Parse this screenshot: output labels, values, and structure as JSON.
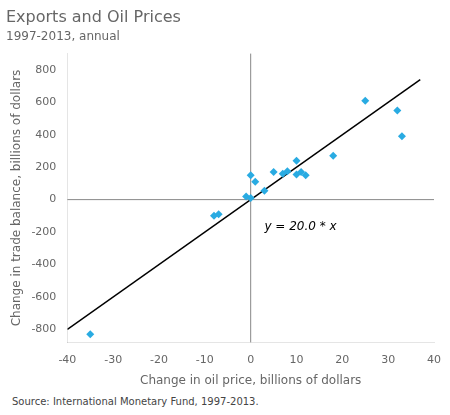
{
  "chart_data": {
    "type": "scatter",
    "title": "Exports and Oil Prices",
    "subtitle": "1997-2013, annual",
    "xlabel": "Change in oil price, billions of dollars",
    "ylabel": "Change in trade balance, billions of dollars",
    "source": "Source: International Monetary Fund, 1997-2013.",
    "series": [
      {
        "type": "scatter",
        "color": "#29ABE2",
        "marker": "diamond",
        "x": [
          -35,
          -8,
          -7,
          -1,
          0,
          0,
          1,
          3,
          5,
          7,
          8,
          10,
          10,
          11,
          12,
          18,
          25,
          32,
          33
        ],
        "values": [
          -830,
          -100,
          -90,
          20,
          10,
          150,
          110,
          55,
          170,
          160,
          175,
          155,
          240,
          170,
          150,
          270,
          610,
          550,
          390
        ]
      },
      {
        "type": "line",
        "color": "black",
        "line_style": "solid",
        "x": [
          -40,
          37
        ],
        "values": [
          -800,
          740
        ]
      }
    ],
    "annotations": [
      {
        "text": "y = 20.0 * x",
        "x": 3,
        "y": -130
      }
    ],
    "hlines": [
      0
    ],
    "vlines": [
      0
    ],
    "xlim": [
      -40,
      40
    ],
    "ylim": [
      -880,
      900
    ],
    "xticks": [
      -40,
      -30,
      -20,
      -10,
      0,
      10,
      20,
      30,
      40
    ],
    "yticks": [
      -800,
      -600,
      -400,
      -200,
      0,
      200,
      400,
      600,
      800
    ],
    "grid": false,
    "legend": false
  }
}
